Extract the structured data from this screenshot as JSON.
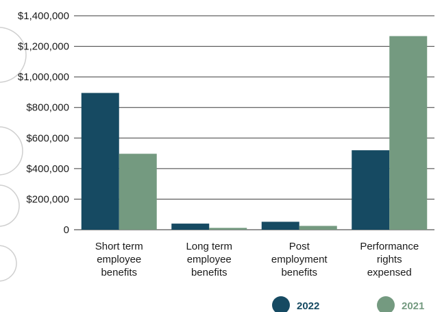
{
  "chart_data": {
    "type": "bar",
    "categories": [
      [
        "Short term",
        "employee",
        "benefits"
      ],
      [
        "Long term",
        "employee",
        "benefits"
      ],
      [
        "Post",
        "employment",
        "benefits"
      ],
      [
        "Performance",
        "rights",
        "expensed"
      ]
    ],
    "series": [
      {
        "name": "2022",
        "color": "#164a62",
        "values": [
          895000,
          40000,
          52000,
          520000
        ]
      },
      {
        "name": "2021",
        "color": "#749a80",
        "values": [
          497000,
          12000,
          25000,
          1267000
        ]
      }
    ],
    "ylim": [
      0,
      1400000
    ],
    "yticks": [
      0,
      200000,
      400000,
      600000,
      800000,
      1000000,
      1200000,
      1400000
    ],
    "ytick_labels": [
      "0",
      "$200,000",
      "$400,000",
      "$600,000",
      "$800,000",
      "$1,000,000",
      "$1,200,000",
      "$1,400,000"
    ],
    "zero_label_color": "#1c5a74",
    "grid": true,
    "legend_position": "bottom-right"
  }
}
